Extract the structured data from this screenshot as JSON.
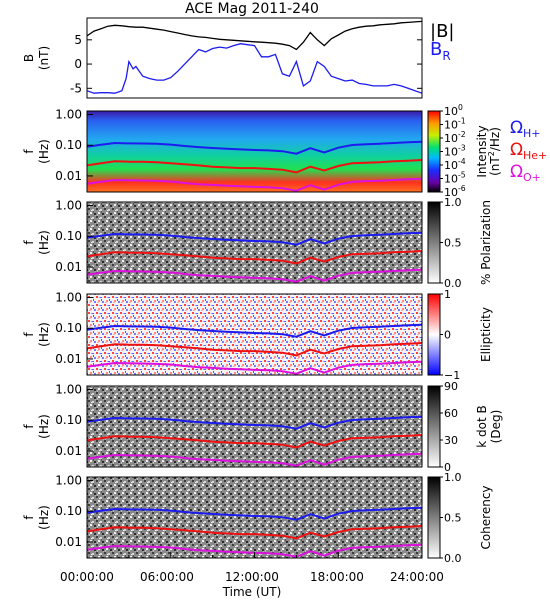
{
  "chart_data": {
    "type": "line",
    "title": "ACE Mag 2011-240",
    "xlabel": "Time (UT)",
    "xticks": [
      "00:00:00",
      "06:00:00",
      "12:00:00",
      "18:00:00",
      "24:00:00"
    ],
    "xlim_hours": [
      0,
      24
    ],
    "panels": [
      {
        "id": "field",
        "ylabel_main": "B",
        "ylabel_unit": "(nT)",
        "ylim": [
          -7,
          9.5
        ],
        "yticks": [
          -5,
          0,
          5
        ],
        "legend": [
          {
            "label": "|B|",
            "color": "#000000"
          },
          {
            "label": "B",
            "sub": "R",
            "color": "#1c1cf0"
          }
        ],
        "series": [
          {
            "name": "|B|",
            "color": "#000000",
            "x": [
              0.0,
              0.5,
              1.0,
              1.5,
              2.0,
              2.5,
              3.0,
              3.5,
              4.0,
              4.5,
              5.0,
              5.5,
              6.0,
              6.5,
              7.0,
              7.5,
              8.0,
              8.5,
              9.0,
              9.5,
              10.0,
              10.5,
              11.0,
              11.5,
              12.0,
              12.5,
              13.0,
              13.5,
              14.0,
              14.5,
              15.0,
              15.5,
              16.0,
              16.5,
              17.0,
              17.5,
              18.0,
              18.5,
              19.0,
              19.5,
              20.0,
              20.5,
              21.0,
              21.5,
              22.0,
              22.5,
              23.0,
              23.5,
              24.0
            ],
            "values": [
              5.8,
              6.8,
              7.3,
              7.8,
              8.0,
              7.9,
              7.7,
              7.6,
              7.6,
              7.4,
              7.2,
              7.0,
              6.7,
              6.4,
              6.1,
              5.8,
              5.6,
              5.5,
              5.3,
              5.1,
              5.0,
              4.9,
              4.8,
              4.7,
              4.6,
              4.5,
              4.4,
              4.3,
              4.1,
              3.8,
              3.0,
              4.5,
              6.5,
              5.0,
              3.8,
              5.2,
              6.0,
              6.8,
              7.3,
              7.6,
              7.8,
              7.9,
              8.1,
              8.2,
              8.3,
              8.5,
              8.6,
              8.7,
              8.8
            ]
          },
          {
            "name": "B_R",
            "color": "#1c1cf0",
            "x": [
              0.0,
              0.5,
              1.0,
              1.5,
              2.0,
              2.5,
              2.8,
              3.0,
              3.3,
              3.5,
              4.0,
              4.5,
              5.0,
              5.5,
              6.0,
              6.5,
              7.0,
              7.5,
              8.0,
              8.5,
              9.0,
              9.5,
              10.0,
              10.5,
              11.0,
              11.5,
              12.0,
              12.5,
              13.0,
              13.5,
              14.0,
              14.5,
              15.0,
              15.5,
              16.0,
              16.5,
              17.0,
              17.5,
              18.0,
              18.5,
              19.0,
              19.5,
              20.0,
              20.5,
              21.0,
              21.5,
              22.0,
              22.5,
              23.0,
              23.5,
              24.0
            ],
            "values": [
              -5.5,
              -6.0,
              -5.9,
              -5.9,
              -6.0,
              -5.5,
              -3.0,
              0.5,
              -1.0,
              -0.5,
              -2.5,
              -3.0,
              -3.3,
              -3.3,
              -2.8,
              -1.5,
              0.0,
              1.5,
              3.0,
              2.5,
              3.2,
              3.5,
              3.3,
              3.8,
              4.2,
              4.0,
              3.8,
              1.5,
              1.5,
              2.0,
              -2.0,
              -2.5,
              0.5,
              -4.5,
              -3.5,
              0.5,
              -0.5,
              -2.5,
              -3.0,
              -3.5,
              -3.3,
              -4.0,
              -4.2,
              -4.5,
              -4.5,
              -4.5,
              -4.2,
              -4.5,
              -5.0,
              -5.5,
              -6.0
            ]
          }
        ]
      },
      {
        "id": "intensity",
        "ylabel_main": "f",
        "ylabel_unit": "(Hz)",
        "yscale": "log",
        "ylim": [
          0.003,
          1.3
        ],
        "yticks": [
          "1.00",
          "0.10",
          "0.01"
        ],
        "colorbar": {
          "label": "Intensity",
          "unit_base": "(nT",
          "unit_exp": "2",
          "unit_tail": "/Hz)",
          "colormap": "rainbow",
          "ticks": [
            {
              "base": "10",
              "exp": "0"
            },
            {
              "base": "10",
              "exp": "-1"
            },
            {
              "base": "10",
              "exp": "-2"
            },
            {
              "base": "10",
              "exp": "-3"
            },
            {
              "base": "10",
              "exp": "-4"
            },
            {
              "base": "10",
              "exp": "-5"
            },
            {
              "base": "10",
              "exp": "-6"
            }
          ]
        },
        "legend": [
          {
            "symbol": "Ω",
            "sub": "H+",
            "color": "#1c1cf0"
          },
          {
            "symbol": "Ω",
            "sub": "He+",
            "color": "#ee1111"
          },
          {
            "symbol": "Ω",
            "sub": "O+",
            "color": "#dd11dd"
          }
        ]
      },
      {
        "id": "polarization",
        "ylabel_main": "f",
        "ylabel_unit": "(Hz)",
        "yscale": "log",
        "ylim": [
          0.003,
          1.3
        ],
        "yticks": [
          "1.00",
          "0.10",
          "0.01"
        ],
        "colorbar": {
          "label": "% Polarization",
          "colormap": "gray",
          "ticks": [
            "1.0",
            "0.5",
            "0.0"
          ]
        }
      },
      {
        "id": "ellipticity",
        "ylabel_main": "f",
        "ylabel_unit": "(Hz)",
        "yscale": "log",
        "ylim": [
          0.003,
          1.3
        ],
        "yticks": [
          "1.00",
          "0.10",
          "0.01"
        ],
        "colorbar": {
          "label": "Ellipticity",
          "colormap": "bwr",
          "ticks": [
            "1",
            "0",
            "−1"
          ]
        }
      },
      {
        "id": "kdotb",
        "ylabel_main": "f",
        "ylabel_unit": "(Hz)",
        "yscale": "log",
        "ylim": [
          0.003,
          1.3
        ],
        "yticks": [
          "1.00",
          "0.10",
          "0.01"
        ],
        "colorbar": {
          "label": "k dot B",
          "unit": "(Deg)",
          "colormap": "gray",
          "ticks": [
            "90",
            "60",
            "30",
            "0"
          ]
        }
      },
      {
        "id": "coherency",
        "ylabel_main": "f",
        "ylabel_unit": "(Hz)",
        "yscale": "log",
        "ylim": [
          0.003,
          1.3
        ],
        "yticks": [
          "1.00",
          "0.10",
          "0.01"
        ],
        "colorbar": {
          "label": "Coherency",
          "colormap": "gray",
          "ticks": [
            "1.0",
            "0.5",
            "0.0"
          ]
        }
      }
    ],
    "gyrofrequency_series": [
      {
        "name": "Ω_H+",
        "color": "#1c1cf0",
        "x": [
          0,
          1,
          2,
          3,
          4,
          5,
          6,
          7,
          8,
          9,
          10,
          11,
          12,
          13,
          14,
          15,
          16,
          17,
          18,
          19,
          20,
          21,
          22,
          23,
          24
        ],
        "values": [
          0.089,
          0.104,
          0.118,
          0.115,
          0.114,
          0.111,
          0.105,
          0.094,
          0.087,
          0.081,
          0.077,
          0.073,
          0.07,
          0.068,
          0.064,
          0.053,
          0.08,
          0.058,
          0.083,
          0.102,
          0.108,
          0.112,
          0.118,
          0.124,
          0.13
        ]
      },
      {
        "name": "Ω_He+",
        "color": "#ee1111",
        "x": [
          0,
          1,
          2,
          3,
          4,
          5,
          6,
          7,
          8,
          9,
          10,
          11,
          12,
          13,
          14,
          15,
          16,
          17,
          18,
          19,
          20,
          21,
          22,
          23,
          24
        ],
        "values": [
          0.022,
          0.026,
          0.03,
          0.029,
          0.029,
          0.028,
          0.026,
          0.024,
          0.022,
          0.02,
          0.019,
          0.018,
          0.018,
          0.017,
          0.016,
          0.013,
          0.02,
          0.015,
          0.021,
          0.026,
          0.027,
          0.028,
          0.03,
          0.031,
          0.033
        ]
      },
      {
        "name": "Ω_O+",
        "color": "#dd11dd",
        "x": [
          0,
          1,
          2,
          3,
          4,
          5,
          6,
          7,
          8,
          9,
          10,
          11,
          12,
          13,
          14,
          15,
          16,
          17,
          18,
          19,
          20,
          21,
          22,
          23,
          24
        ],
        "values": [
          0.0056,
          0.0065,
          0.0074,
          0.0072,
          0.0071,
          0.0069,
          0.0066,
          0.0059,
          0.0054,
          0.0051,
          0.0048,
          0.0046,
          0.0044,
          0.0043,
          0.004,
          0.0033,
          0.005,
          0.0036,
          0.0052,
          0.0064,
          0.0068,
          0.007,
          0.0074,
          0.0078,
          0.0081
        ]
      }
    ]
  }
}
